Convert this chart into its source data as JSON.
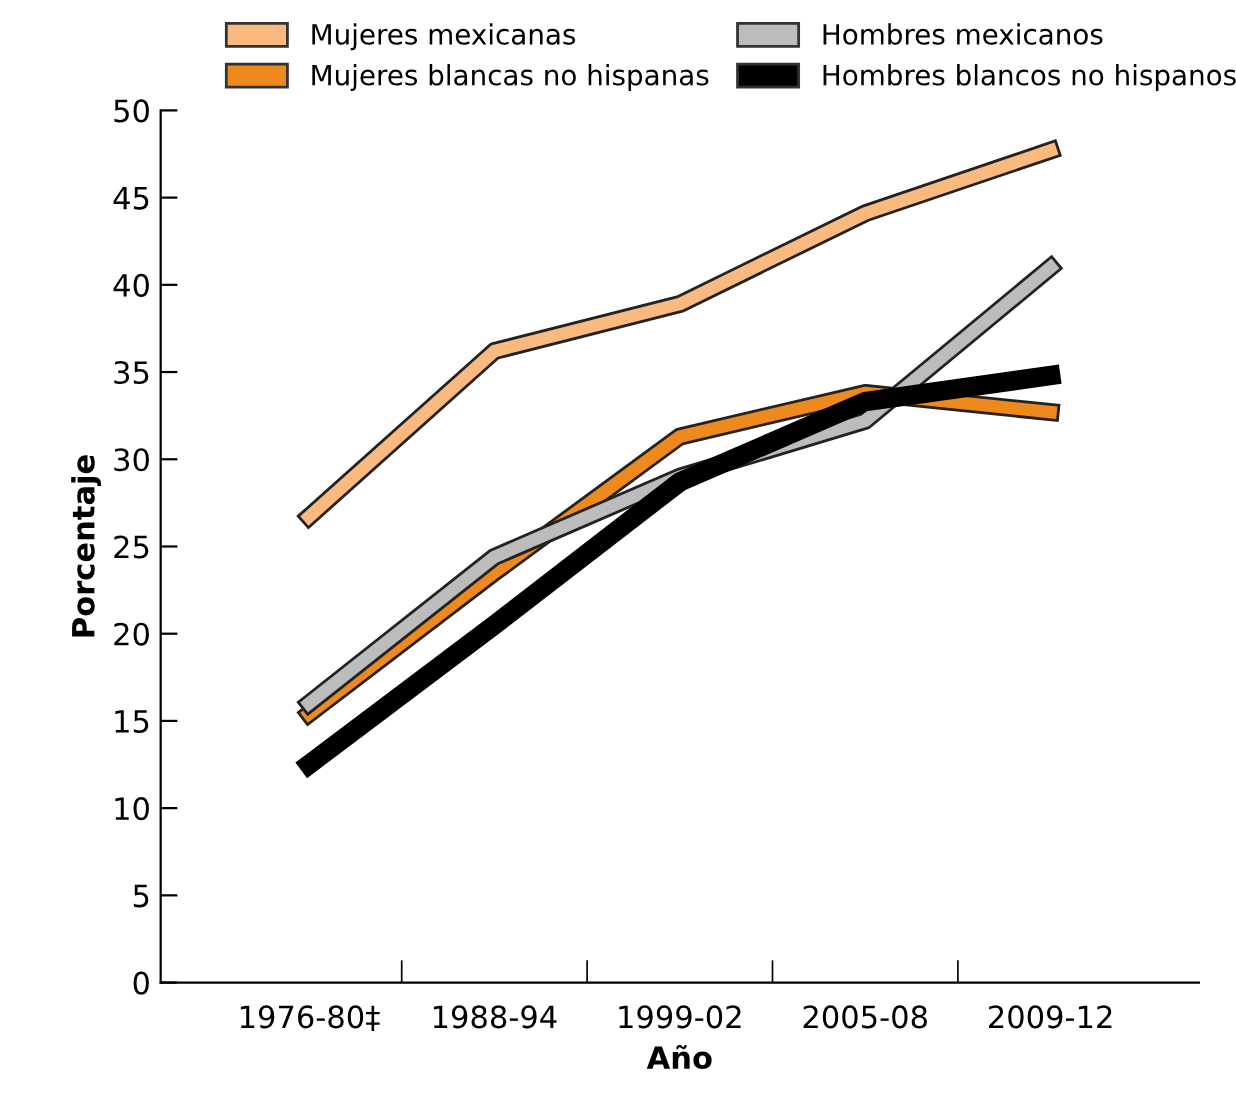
{
  "chart_data": {
    "type": "line",
    "xlabel": "Año",
    "ylabel": "Porcentaje",
    "categories": [
      "1976-80‡",
      "1988-94",
      "1999-02",
      "2005-08",
      "2009-12"
    ],
    "series": [
      {
        "name": "Mujeres mexicanas",
        "color": "#f9b97f",
        "values": [
          26.7,
          36.2,
          38.9,
          44.1,
          47.7
        ]
      },
      {
        "name": "Mujeres blancas no hispanas",
        "color": "#ee8a1d",
        "values": [
          15.4,
          23.5,
          31.3,
          33.8,
          32.7
        ]
      },
      {
        "name": "Hombres mexicanos",
        "color": "#bcbcbc",
        "values": [
          16.0,
          24.4,
          29.0,
          32.2,
          41.0
        ]
      },
      {
        "name": "Hombres blancos no hispanos",
        "color": "#000000",
        "values": [
          12.5,
          20.5,
          28.7,
          33.3,
          34.8
        ]
      }
    ],
    "ylim": [
      0,
      50
    ],
    "yticks": [
      0,
      5,
      10,
      15,
      20,
      25,
      30,
      35,
      40,
      45,
      50
    ],
    "legend": "top",
    "grid": false,
    "marker": "none",
    "line_style": "solid"
  }
}
